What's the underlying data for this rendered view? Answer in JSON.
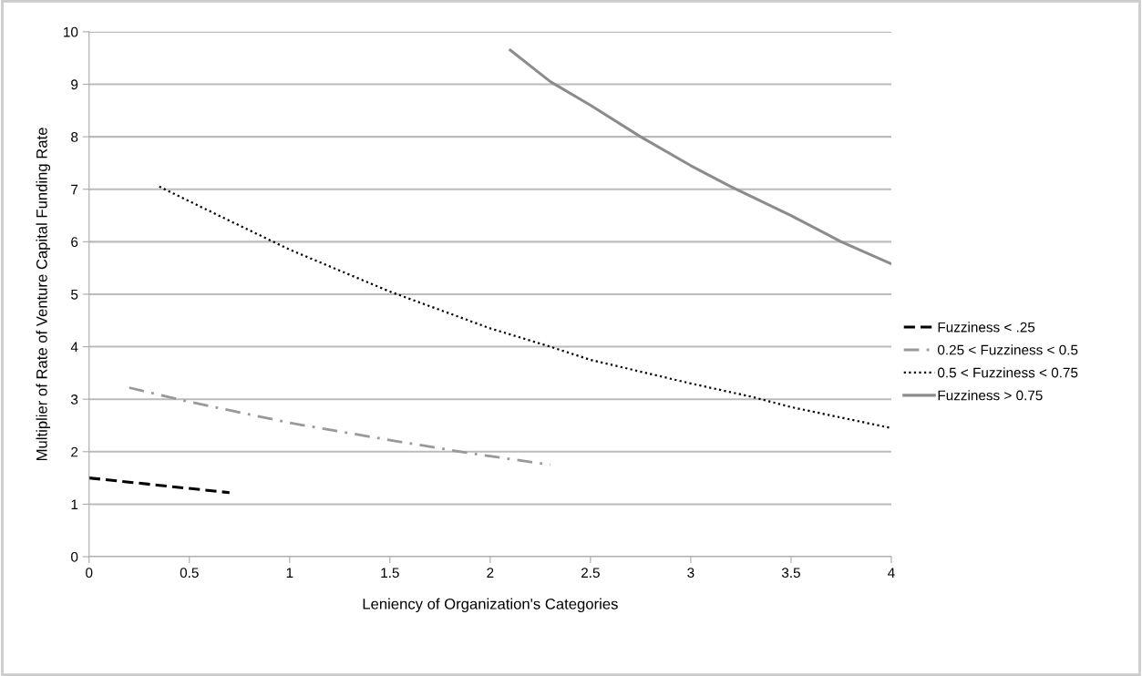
{
  "chart_data": {
    "type": "line",
    "xlabel": "Leniency of Organization's Categories",
    "ylabel": "Multiplier of Rate of Venture Capital Funding Rate",
    "xlim": [
      0,
      4
    ],
    "xticks": [
      0,
      0.5,
      1,
      1.5,
      2,
      2.5,
      3,
      3.5,
      4
    ],
    "ylim": [
      0,
      10
    ],
    "yticks": [
      0,
      1,
      2,
      3,
      4,
      5,
      6,
      7,
      8,
      9,
      10
    ],
    "grid": "y",
    "legend": "right",
    "marker": "none",
    "series": [
      {
        "name": "Fuzziness < .25",
        "color": "#000000",
        "line_style": "dashed",
        "x": [
          0,
          0.35,
          0.7
        ],
        "values": [
          1.5,
          1.36,
          1.22
        ]
      },
      {
        "name": "0.25 < Fuzziness < 0.5",
        "color": "#999999",
        "line_style": "dashdot",
        "x": [
          0.2,
          0.5,
          1,
          1.5,
          1.9,
          2.3
        ],
        "values": [
          3.22,
          2.95,
          2.55,
          2.22,
          1.97,
          1.75
        ]
      },
      {
        "name": "0.5 < Fuzziness < 0.75",
        "color": "#000000",
        "line_style": "dotted",
        "x": [
          0.35,
          0.7,
          1,
          1.5,
          2,
          2.3,
          2.5,
          3,
          3.3,
          3.5,
          4
        ],
        "values": [
          7.05,
          6.4,
          5.85,
          5.05,
          4.35,
          4.0,
          3.75,
          3.3,
          3.05,
          2.85,
          2.45
        ]
      },
      {
        "name": "Fuzziness > 0.75",
        "color": "#8c8c8c",
        "line_style": "solid",
        "x": [
          2.1,
          2.3,
          2.5,
          2.75,
          3,
          3.2,
          3.5,
          3.75,
          4
        ],
        "values": [
          9.65,
          9.05,
          8.6,
          8.0,
          7.45,
          7.05,
          6.5,
          6.0,
          5.58
        ]
      }
    ]
  }
}
